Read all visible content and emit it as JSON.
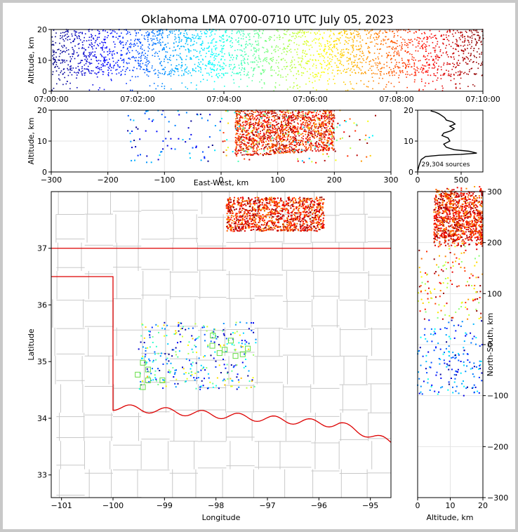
{
  "title": "Oklahoma LMA 0700-0710 UTC July 05, 2023",
  "colors": {
    "state_border": "#dd0000",
    "county_lines": "#c8c8c8",
    "altitude_profile": "#000000",
    "box_color": "#66dd44"
  },
  "chart_data": [
    {
      "id": "time_height",
      "type": "scatter",
      "xlabel": "",
      "ylabel": "Altitude, km",
      "xlim": [
        "07:00:00",
        "07:10:00"
      ],
      "ylim": [
        0,
        20
      ],
      "x_ticks": [
        "07:00:00",
        "07:02:00",
        "07:04:00",
        "07:06:00",
        "07:08:00",
        "07:10:00"
      ],
      "y_ticks": [
        "0",
        "10",
        "20"
      ],
      "color_by": "time",
      "colormap": "jet",
      "altitude_range_km": [
        5,
        20
      ]
    },
    {
      "id": "ew_height",
      "type": "scatter",
      "xlabel": "East-West, km",
      "ylabel": "Altitude, km",
      "xlim": [
        -300,
        300
      ],
      "ylim": [
        0,
        20
      ],
      "x_ticks": [
        "−300",
        "−200",
        "−100",
        "0",
        "100",
        "200",
        "300"
      ],
      "y_ticks": [
        "0",
        "10",
        "20"
      ],
      "dense_region_km": [
        25,
        200
      ],
      "color_by": "time"
    },
    {
      "id": "altitude_histogram",
      "type": "line",
      "xlim": [
        0,
        750
      ],
      "ylim": [
        0,
        20
      ],
      "x_ticks": [
        "0",
        "500"
      ],
      "y_ticks": [
        "0",
        "10",
        "20"
      ],
      "annotation": "29,304 sources",
      "profile": [
        [
          0,
          0.2
        ],
        [
          15,
          2
        ],
        [
          40,
          4
        ],
        [
          90,
          5
        ],
        [
          250,
          5.4
        ],
        [
          500,
          5.7
        ],
        [
          680,
          6.1
        ],
        [
          590,
          6.7
        ],
        [
          420,
          7.2
        ],
        [
          330,
          8.0
        ],
        [
          300,
          9.0
        ],
        [
          370,
          10.0
        ],
        [
          350,
          11.0
        ],
        [
          280,
          11.8
        ],
        [
          300,
          12.6
        ],
        [
          380,
          13.3
        ],
        [
          420,
          14.0
        ],
        [
          370,
          14.8
        ],
        [
          430,
          15.5
        ],
        [
          400,
          16.2
        ],
        [
          330,
          16.8
        ],
        [
          310,
          17.6
        ],
        [
          280,
          18.2
        ],
        [
          240,
          18.9
        ],
        [
          200,
          19.4
        ],
        [
          150,
          19.8
        ]
      ]
    },
    {
      "id": "plan_view",
      "type": "scatter",
      "xlabel": "Longitude",
      "ylabel": "Latitude",
      "xlim": [
        -101.2,
        -94.6
      ],
      "ylim": [
        32.6,
        38.0
      ],
      "x_ticks": [
        "−101",
        "−100",
        "−99",
        "−98",
        "−97",
        "−96",
        "−95"
      ],
      "y_ticks": [
        "33",
        "34",
        "35",
        "36",
        "37"
      ],
      "dense_region": {
        "lon": [
          -97.8,
          -95.9
        ],
        "lat": [
          37.3,
          37.9
        ]
      },
      "sparse_region": {
        "lon": [
          -99.5,
          -97.2
        ],
        "lat": [
          34.5,
          35.7
        ]
      },
      "stations": [
        [
          -99.42,
          34.98
        ],
        [
          -99.32,
          34.86
        ],
        [
          -99.52,
          34.77
        ],
        [
          -99.32,
          34.67
        ],
        [
          -99.42,
          34.55
        ],
        [
          -99.04,
          34.67
        ],
        [
          -98.06,
          35.46
        ],
        [
          -98.07,
          35.28
        ],
        [
          -97.93,
          35.15
        ],
        [
          -97.71,
          35.37
        ],
        [
          -97.83,
          35.21
        ],
        [
          -97.48,
          35.13
        ],
        [
          -97.38,
          35.23
        ],
        [
          -97.62,
          35.1
        ]
      ]
    },
    {
      "id": "ns_height",
      "type": "scatter",
      "xlabel": "Altitude, km",
      "ylabel": "North-South, km",
      "xlim": [
        0,
        20
      ],
      "ylim": [
        -300,
        300
      ],
      "x_ticks": [
        "0",
        "10",
        "20"
      ],
      "y_ticks": [
        "−300",
        "−200",
        "−100",
        "0",
        "100",
        "200",
        "300"
      ],
      "dense_region_km": [
        200,
        300
      ]
    }
  ]
}
